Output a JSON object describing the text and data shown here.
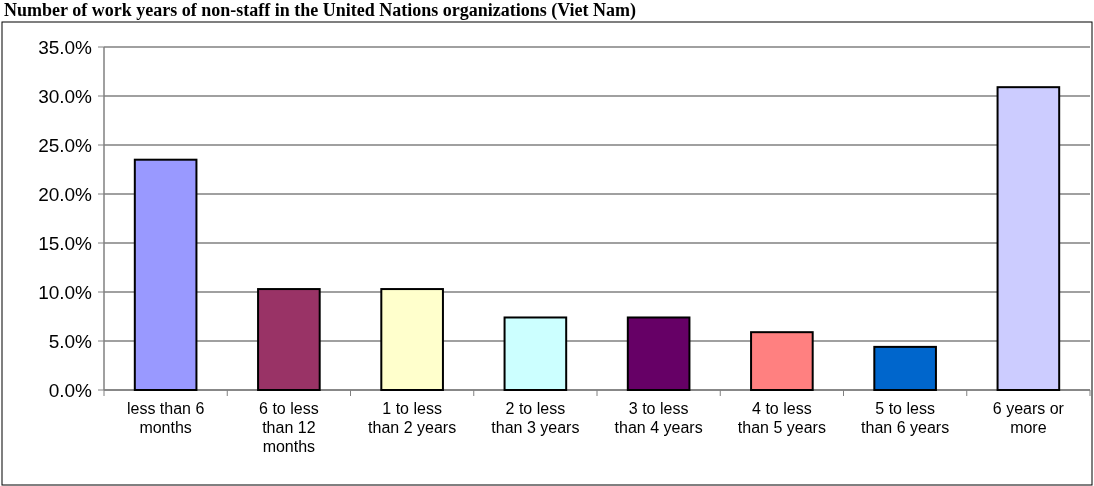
{
  "chart_data": {
    "type": "bar",
    "title": "Number of work years of non-staff in the United Nations organizations (Viet Nam)",
    "categories": [
      "less than 6 months",
      "6 to less than 12 months",
      "1 to less than 2 years",
      "2 to less than 3 years",
      "3 to less than 4 years",
      "4 to less than 5 years",
      "5 to less than 6 years",
      "6 years or more"
    ],
    "values": [
      23.5,
      10.3,
      10.3,
      7.4,
      7.4,
      5.9,
      4.4,
      30.9
    ],
    "colors": [
      "#9999ff",
      "#993366",
      "#ffffcc",
      "#ccffff",
      "#660066",
      "#ff8080",
      "#0066cc",
      "#ccccff"
    ],
    "ylim": [
      0,
      35
    ],
    "yticks": [
      {
        "value": 0,
        "label": "0.0%"
      },
      {
        "value": 5,
        "label": "5.0%"
      },
      {
        "value": 10,
        "label": "10.0%"
      },
      {
        "value": 15,
        "label": "15.0%"
      },
      {
        "value": 20,
        "label": "20.0%"
      },
      {
        "value": 25,
        "label": "25.0%"
      },
      {
        "value": 30,
        "label": "30.0%"
      },
      {
        "value": 35,
        "label": "35.0%"
      }
    ],
    "grid": "y"
  }
}
